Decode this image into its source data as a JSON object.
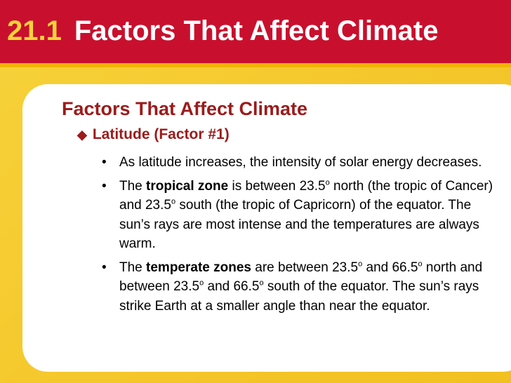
{
  "header": {
    "number": "21.1",
    "title": "Factors That Affect Climate"
  },
  "content": {
    "heading": "Factors That Affect Climate",
    "subheading": "Latitude (Factor #1)",
    "bullets": [
      {
        "parts": [
          {
            "text": "As latitude increases, the intensity of solar energy decreases."
          }
        ]
      },
      {
        "parts": [
          {
            "text": "The "
          },
          {
            "text": "tropical zone",
            "bold": true
          },
          {
            "text": " is between 23.5"
          },
          {
            "text": "o",
            "sup": true
          },
          {
            "text": " north (the tropic of Cancer) and 23.5"
          },
          {
            "text": "o",
            "sup": true
          },
          {
            "text": " south (the tropic of Capricorn) of the equator. The sun’s rays are most intense and the temperatures are always warm."
          }
        ]
      },
      {
        "parts": [
          {
            "text": "The "
          },
          {
            "text": "temperate zones",
            "bold": true
          },
          {
            "text": " are between 23.5"
          },
          {
            "text": "o",
            "sup": true
          },
          {
            "text": " and 66.5"
          },
          {
            "text": "o",
            "sup": true
          },
          {
            "text": " north and between 23.5"
          },
          {
            "text": "o",
            "sup": true
          },
          {
            "text": " and 66.5"
          },
          {
            "text": "o",
            "sup": true
          },
          {
            "text": " south of the equator. The sun’s rays strike Earth at a smaller angle than near the equator."
          }
        ]
      }
    ]
  }
}
